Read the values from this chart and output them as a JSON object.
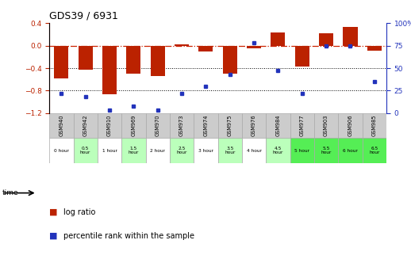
{
  "title": "GDS39 / 6931",
  "samples": [
    "GSM940",
    "GSM942",
    "GSM910",
    "GSM969",
    "GSM970",
    "GSM973",
    "GSM974",
    "GSM975",
    "GSM976",
    "GSM984",
    "GSM977",
    "GSM903",
    "GSM906",
    "GSM985"
  ],
  "time_labels": [
    "0 hour",
    "0.5\nhour",
    "1 hour",
    "1.5\nhour",
    "2 hour",
    "2.5\nhour",
    "3 hour",
    "3.5\nhour",
    "4 hour",
    "4.5\nhour",
    "5 hour",
    "5.5\nhour",
    "6 hour",
    "6.5\nhour"
  ],
  "log_ratio": [
    -0.58,
    -0.43,
    -0.86,
    -0.5,
    -0.54,
    0.03,
    -0.1,
    -0.5,
    -0.04,
    0.24,
    -0.37,
    0.22,
    0.33,
    -0.09
  ],
  "percentile": [
    22,
    18,
    3,
    8,
    3,
    22,
    30,
    43,
    78,
    47,
    22,
    75,
    75,
    35
  ],
  "bar_color": "#bb2200",
  "dot_color": "#2233bb",
  "ylim_left": [
    -1.2,
    0.4
  ],
  "ylim_right": [
    0,
    100
  ],
  "yticks_left": [
    -1.2,
    -0.8,
    -0.4,
    0.0,
    0.4
  ],
  "yticks_right": [
    0,
    25,
    50,
    75,
    100
  ],
  "background_color": "#ffffff",
  "plot_bg": "#ffffff",
  "grid_color": "#000000",
  "hline_color": "#cc2200",
  "time_bg_colors": [
    "#ffffff",
    "#bbffbb",
    "#ffffff",
    "#bbffbb",
    "#ffffff",
    "#bbffbb",
    "#ffffff",
    "#bbffbb",
    "#ffffff",
    "#bbffbb",
    "#55ee55",
    "#55ee55",
    "#55ee55",
    "#55ee55"
  ]
}
